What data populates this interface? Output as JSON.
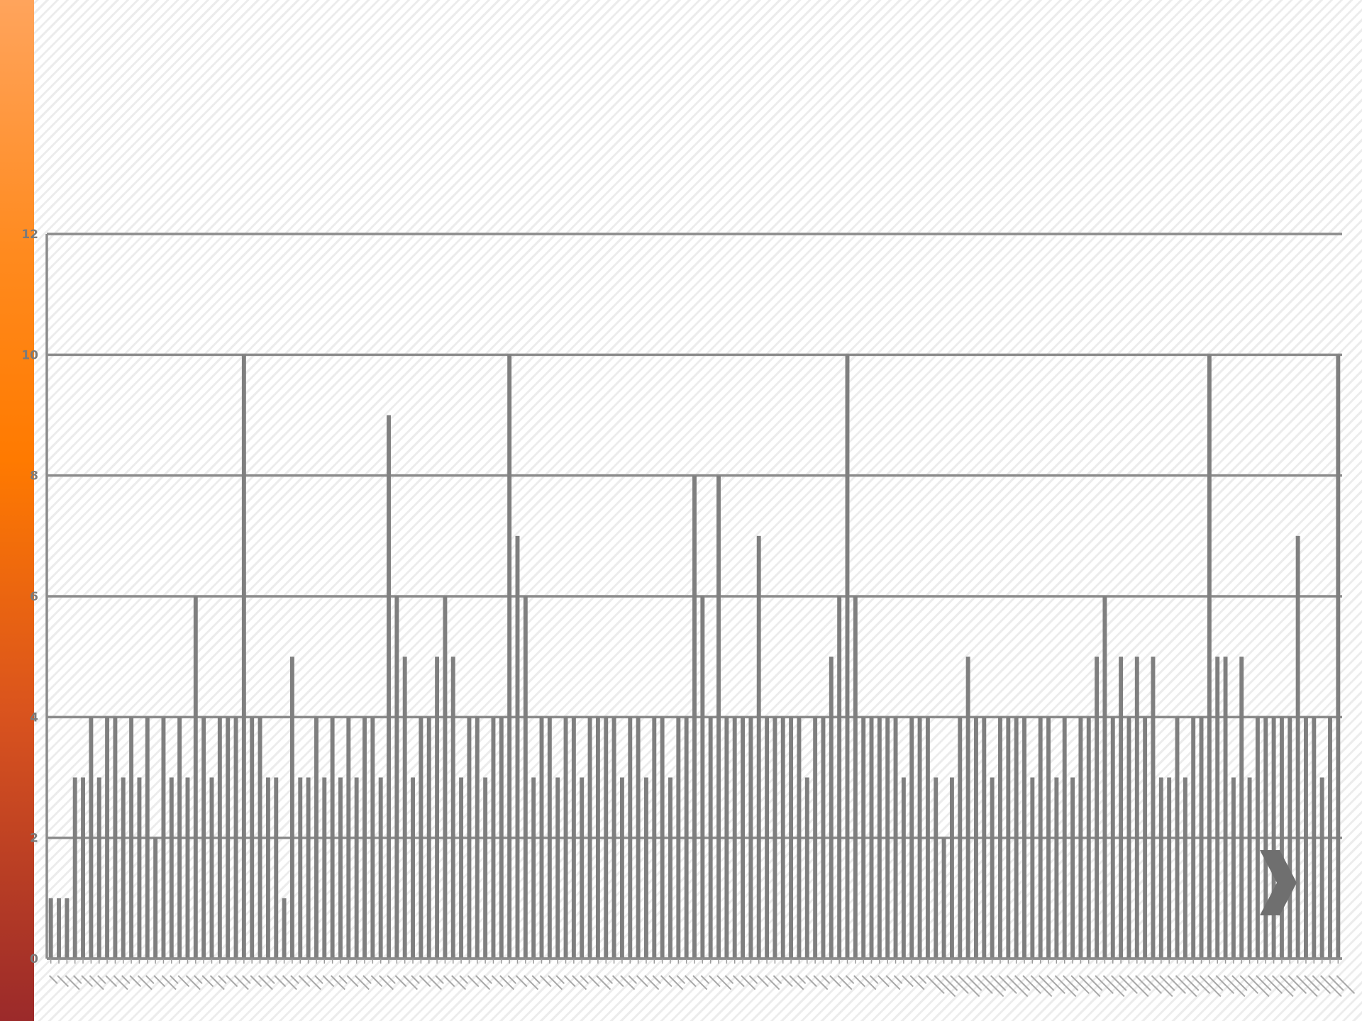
{
  "chart_data": {
    "type": "bar",
    "title": "",
    "xlabel": "",
    "ylabel": "",
    "ylim": [
      0,
      12
    ],
    "yticks": [
      0,
      2,
      4,
      6,
      8,
      10,
      12
    ],
    "grid": true,
    "legend": "none",
    "bar_color": "#7f7f7f",
    "values": [
      1,
      1,
      1,
      3,
      3,
      4,
      3,
      4,
      4,
      3,
      4,
      3,
      4,
      2,
      4,
      3,
      4,
      3,
      6,
      4,
      3,
      4,
      4,
      4,
      10,
      4,
      4,
      3,
      3,
      1,
      5,
      3,
      3,
      4,
      3,
      4,
      3,
      4,
      3,
      4,
      4,
      3,
      9,
      6,
      5,
      3,
      4,
      4,
      5,
      6,
      5,
      3,
      4,
      4,
      3,
      4,
      4,
      10,
      7,
      6,
      3,
      4,
      4,
      3,
      4,
      4,
      3,
      4,
      4,
      4,
      4,
      3,
      4,
      4,
      3,
      4,
      4,
      3,
      4,
      4,
      8,
      6,
      4,
      8,
      4,
      4,
      4,
      4,
      7,
      4,
      4,
      4,
      4,
      4,
      3,
      4,
      4,
      5,
      6,
      10,
      6,
      4,
      4,
      4,
      4,
      4,
      3,
      4,
      4,
      4,
      3,
      2,
      3,
      4,
      5,
      4,
      4,
      3,
      4,
      4,
      4,
      4,
      3,
      4,
      4,
      3,
      4,
      3,
      4,
      4,
      5,
      6,
      4,
      5,
      4,
      5,
      4,
      5,
      3,
      3,
      4,
      3,
      4,
      4,
      10,
      5,
      5,
      3,
      5,
      3,
      4,
      4,
      4,
      4,
      4,
      7,
      4,
      4,
      3,
      4,
      10
    ]
  },
  "nav": {
    "next_icon": "chevron-right-icon"
  }
}
